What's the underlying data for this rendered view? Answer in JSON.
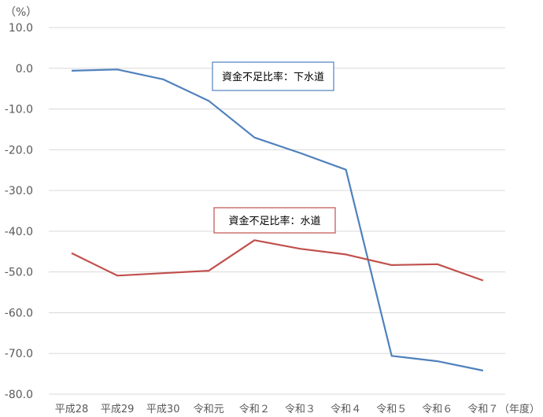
{
  "chart_data": {
    "type": "line",
    "unit_label": "（%）",
    "x_suffix": "（年度）",
    "categories": [
      "平成28",
      "平成29",
      "平成30",
      "令和元",
      "令和２",
      "令和３",
      "令和４",
      "令和５",
      "令和６",
      "令和７"
    ],
    "y_ticks": [
      "10.0",
      "0.0",
      "-10.0",
      "-20.0",
      "-30.0",
      "-40.0",
      "-50.0",
      "-60.0",
      "-70.0",
      "-80.0"
    ],
    "ylim": [
      -80,
      10
    ],
    "grid": true,
    "series": [
      {
        "name": "資金不足比率：下水道",
        "color": "#4f81bd",
        "values": [
          -0.6,
          -0.3,
          -2.7,
          -8.0,
          -17.0,
          -20.8,
          -24.9,
          -70.6,
          -71.9,
          -74.2
        ]
      },
      {
        "name": "資金不足比率：水道",
        "color": "#c0504d",
        "values": [
          -45.4,
          -50.9,
          -50.3,
          -49.7,
          -42.2,
          -44.3,
          -45.7,
          -48.3,
          -48.1,
          -52.1
        ]
      }
    ]
  }
}
